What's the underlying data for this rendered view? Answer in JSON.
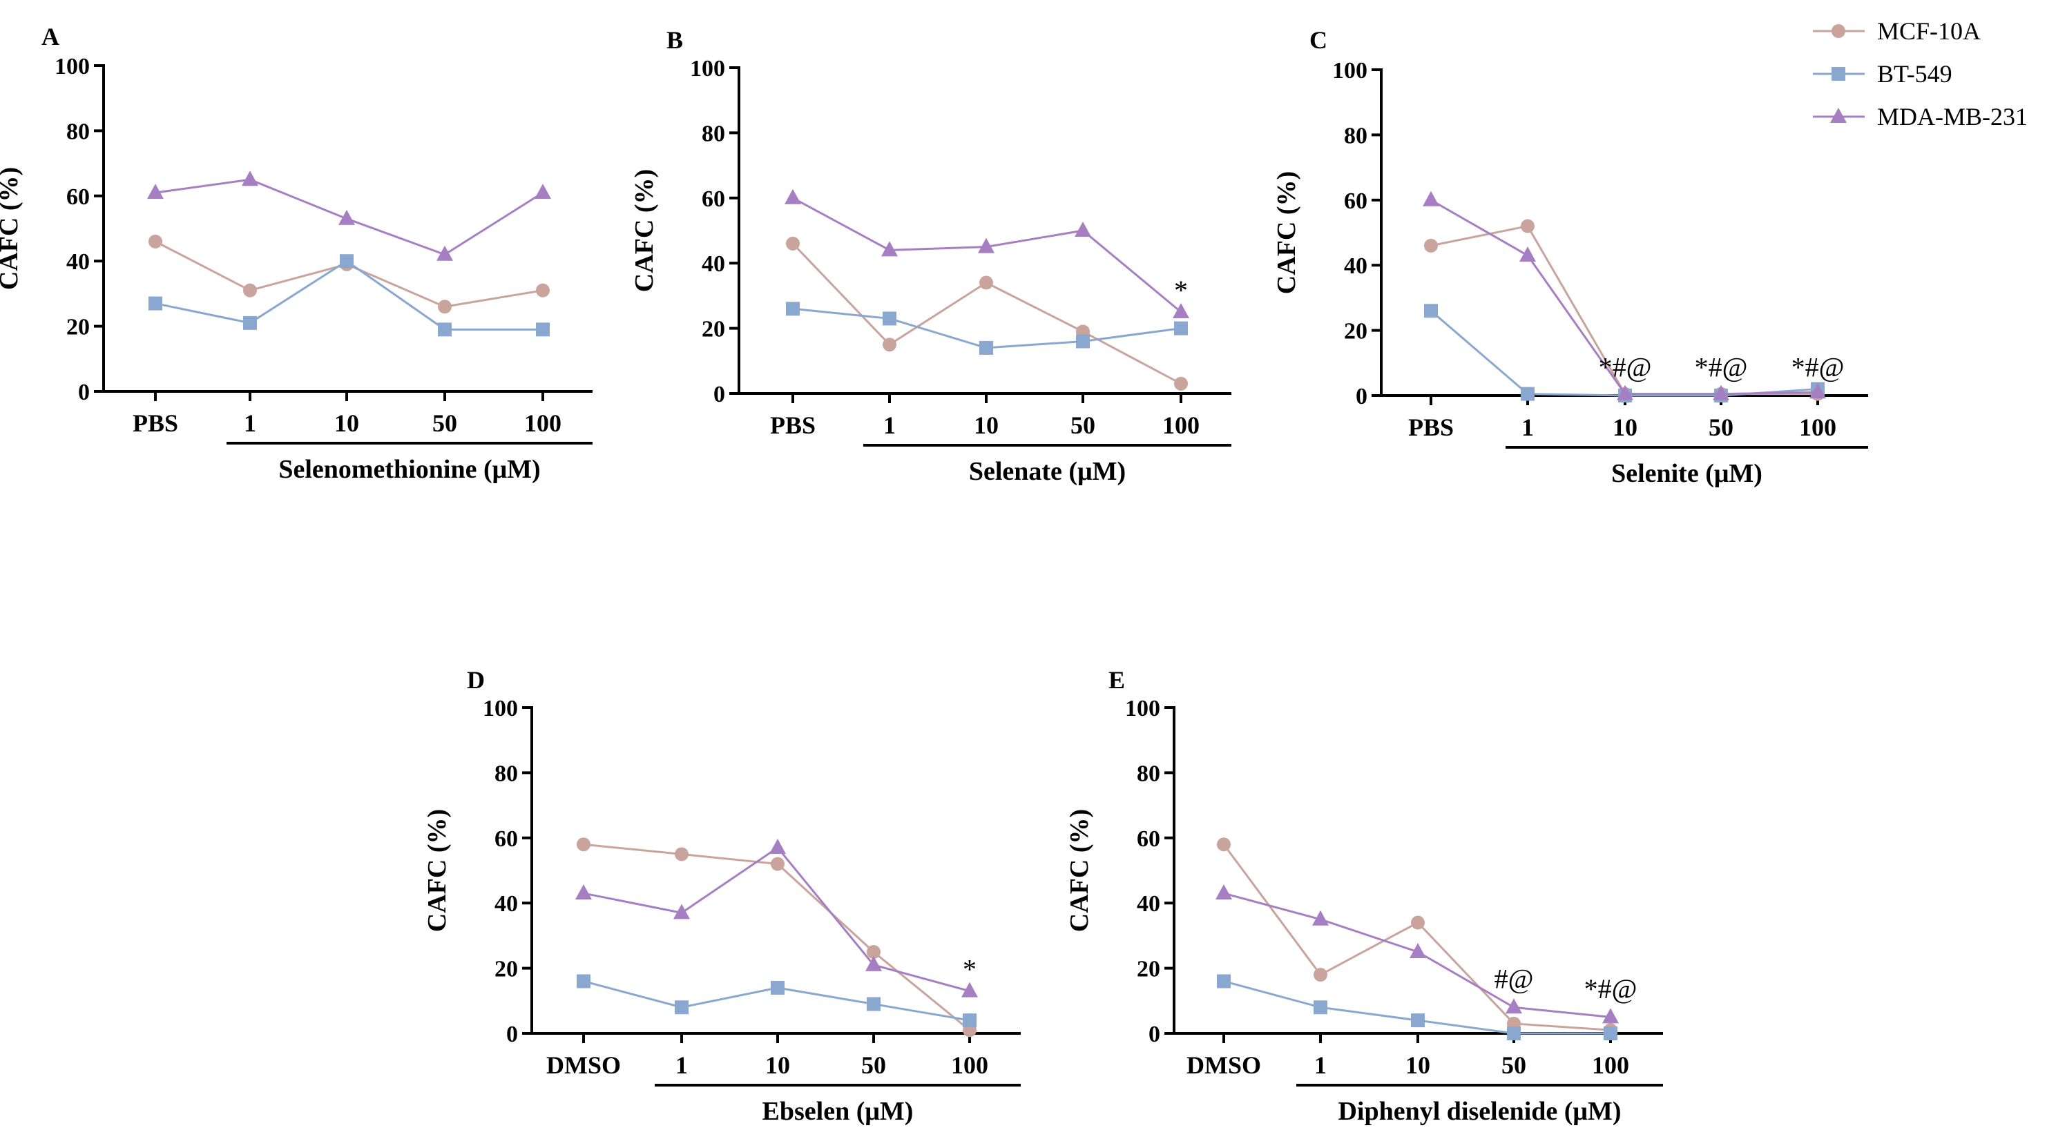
{
  "legend": [
    {
      "name": "MCF-10A",
      "color": "#c9a49c",
      "marker": "circle"
    },
    {
      "name": "BT-549",
      "color": "#8aa7cf",
      "marker": "square"
    },
    {
      "name": "MDA-MB-231",
      "color": "#a67fc3",
      "marker": "triangle"
    }
  ],
  "chart_data": [
    {
      "type": "line",
      "panel": "A",
      "ylabel": "CAFC (%)",
      "xlabel": "Selenomethionine (μM)",
      "categories": [
        "PBS",
        "1",
        "10",
        "50",
        "100"
      ],
      "yticks": [
        "0",
        "20",
        "40",
        "60",
        "80",
        "100"
      ],
      "ylim": [
        0,
        100
      ],
      "series": [
        {
          "name": "MCF-10A",
          "values": [
            46,
            31,
            39,
            26,
            31
          ]
        },
        {
          "name": "BT-549",
          "values": [
            27,
            21,
            40,
            19,
            19
          ]
        },
        {
          "name": "MDA-MB-231",
          "values": [
            61,
            65,
            53,
            42,
            61
          ]
        }
      ],
      "annotations": []
    },
    {
      "type": "line",
      "panel": "B",
      "ylabel": "CAFC (%)",
      "xlabel": "Selenate (μM)",
      "categories": [
        "PBS",
        "1",
        "10",
        "50",
        "100"
      ],
      "yticks": [
        "0",
        "20",
        "40",
        "60",
        "80",
        "100"
      ],
      "ylim": [
        0,
        100
      ],
      "series": [
        {
          "name": "MCF-10A",
          "values": [
            46,
            15,
            34,
            19,
            3
          ]
        },
        {
          "name": "BT-549",
          "values": [
            26,
            23,
            14,
            16,
            20
          ]
        },
        {
          "name": "MDA-MB-231",
          "values": [
            60,
            44,
            45,
            50,
            25
          ]
        }
      ],
      "annotations": [
        {
          "category": "100",
          "text": "*",
          "y": 28
        }
      ]
    },
    {
      "type": "line",
      "panel": "C",
      "ylabel": "CAFC (%)",
      "xlabel": "Selenite (μM)",
      "categories": [
        "PBS",
        "1",
        "10",
        "50",
        "100"
      ],
      "yticks": [
        "0",
        "20",
        "40",
        "60",
        "80",
        "100"
      ],
      "ylim": [
        0,
        100
      ],
      "series": [
        {
          "name": "MCF-10A",
          "values": [
            46,
            52,
            0.5,
            0.5,
            0.5
          ]
        },
        {
          "name": "BT-549",
          "values": [
            26,
            0.5,
            0,
            0,
            2
          ]
        },
        {
          "name": "MDA-MB-231",
          "values": [
            60,
            43,
            0.5,
            0.5,
            1
          ]
        }
      ],
      "annotations": [
        {
          "category": "10",
          "text": "*#@",
          "y": 5
        },
        {
          "category": "50",
          "text": "*#@",
          "y": 5
        },
        {
          "category": "100",
          "text": "*#@",
          "y": 5
        }
      ]
    },
    {
      "type": "line",
      "panel": "D",
      "ylabel": "CAFC (%)",
      "xlabel": "Ebselen (μM)",
      "categories": [
        "DMSO",
        "1",
        "10",
        "50",
        "100"
      ],
      "yticks": [
        "0",
        "20",
        "40",
        "60",
        "80",
        "100"
      ],
      "ylim": [
        0,
        100
      ],
      "series": [
        {
          "name": "MCF-10A",
          "values": [
            58,
            55,
            52,
            25,
            1
          ]
        },
        {
          "name": "BT-549",
          "values": [
            16,
            8,
            14,
            9,
            4
          ]
        },
        {
          "name": "MDA-MB-231",
          "values": [
            43,
            37,
            57,
            21,
            13
          ]
        }
      ],
      "annotations": [
        {
          "category": "100",
          "text": "*",
          "y": 16
        }
      ]
    },
    {
      "type": "line",
      "panel": "E",
      "ylabel": "CAFC (%)",
      "xlabel": "Diphenyl diselenide (μM)",
      "categories": [
        "DMSO",
        "1",
        "10",
        "50",
        "100"
      ],
      "yticks": [
        "0",
        "20",
        "40",
        "60",
        "80",
        "100"
      ],
      "ylim": [
        0,
        100
      ],
      "series": [
        {
          "name": "MCF-10A",
          "values": [
            58,
            18,
            34,
            3,
            1
          ]
        },
        {
          "name": "BT-549",
          "values": [
            16,
            8,
            4,
            0,
            0
          ]
        },
        {
          "name": "MDA-MB-231",
          "values": [
            43,
            35,
            25,
            8,
            5
          ]
        }
      ],
      "annotations": [
        {
          "category": "50",
          "text": "#@",
          "y": 13
        },
        {
          "category": "100",
          "text": "*#@",
          "y": 10
        }
      ]
    }
  ]
}
